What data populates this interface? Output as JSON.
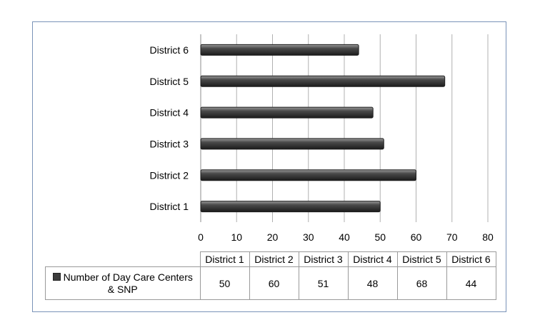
{
  "chart_data": {
    "type": "bar",
    "orientation": "horizontal",
    "categories": [
      "District 1",
      "District 2",
      "District 3",
      "District 4",
      "District 5",
      "District 6"
    ],
    "series": [
      {
        "name": "Number of Day Care Centers & SNP",
        "values": [
          50,
          60,
          51,
          48,
          68,
          44
        ]
      }
    ],
    "xlim": [
      0,
      80
    ],
    "x_ticks": [
      0,
      10,
      20,
      30,
      40,
      50,
      60,
      70,
      80
    ],
    "grid": "vertical",
    "legend": "data-table",
    "colors": {
      "bar": "#3a3a3a",
      "grid": "#b0b0b0",
      "frame": "#7a93b8"
    }
  }
}
